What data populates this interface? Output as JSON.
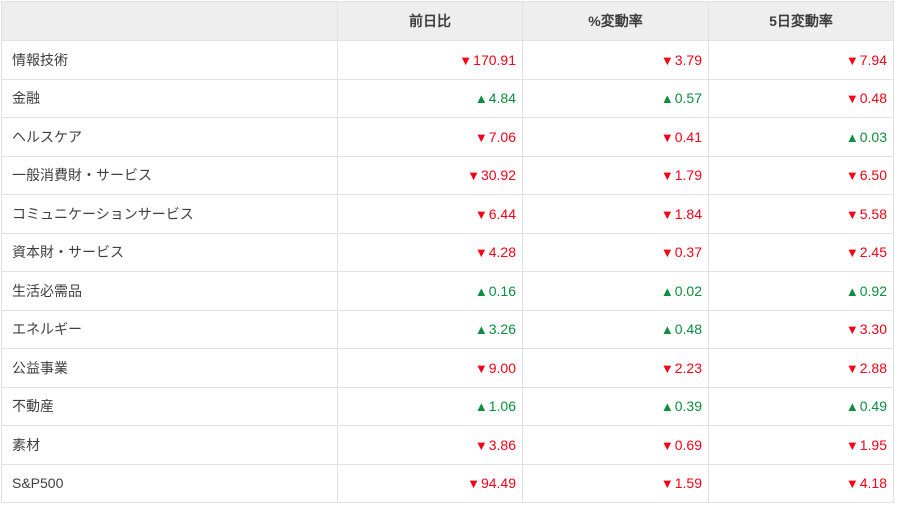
{
  "colors": {
    "up": "#0a8f3c",
    "down": "#fa0016",
    "header_bg": "#eeeeef",
    "border": "#e2e2e3",
    "text": "#3f3f3f"
  },
  "icons": {
    "up": "▲",
    "down": "▼"
  },
  "table": {
    "columns": [
      {
        "key": "name",
        "label": ""
      },
      {
        "key": "dod",
        "label": "前日比"
      },
      {
        "key": "pct",
        "label": "%変動率"
      },
      {
        "key": "pct5d",
        "label": "5日変動率"
      }
    ],
    "rows": [
      {
        "name": "情報技術",
        "cells": [
          {
            "dir": "down",
            "value": "170.91"
          },
          {
            "dir": "down",
            "value": "3.79"
          },
          {
            "dir": "down",
            "value": "7.94"
          }
        ]
      },
      {
        "name": "金融",
        "cells": [
          {
            "dir": "up",
            "value": "4.84"
          },
          {
            "dir": "up",
            "value": "0.57"
          },
          {
            "dir": "down",
            "value": "0.48"
          }
        ]
      },
      {
        "name": "ヘルスケア",
        "cells": [
          {
            "dir": "down",
            "value": "7.06"
          },
          {
            "dir": "down",
            "value": "0.41"
          },
          {
            "dir": "up",
            "value": "0.03"
          }
        ]
      },
      {
        "name": "一般消費財・サービス",
        "cells": [
          {
            "dir": "down",
            "value": "30.92"
          },
          {
            "dir": "down",
            "value": "1.79"
          },
          {
            "dir": "down",
            "value": "6.50"
          }
        ]
      },
      {
        "name": "コミュニケーションサービス",
        "cells": [
          {
            "dir": "down",
            "value": "6.44"
          },
          {
            "dir": "down",
            "value": "1.84"
          },
          {
            "dir": "down",
            "value": "5.58"
          }
        ]
      },
      {
        "name": "資本財・サービス",
        "cells": [
          {
            "dir": "down",
            "value": "4.28"
          },
          {
            "dir": "down",
            "value": "0.37"
          },
          {
            "dir": "down",
            "value": "2.45"
          }
        ]
      },
      {
        "name": "生活必需品",
        "cells": [
          {
            "dir": "up",
            "value": "0.16"
          },
          {
            "dir": "up",
            "value": "0.02"
          },
          {
            "dir": "up",
            "value": "0.92"
          }
        ]
      },
      {
        "name": "エネルギー",
        "cells": [
          {
            "dir": "up",
            "value": "3.26"
          },
          {
            "dir": "up",
            "value": "0.48"
          },
          {
            "dir": "down",
            "value": "3.30"
          }
        ]
      },
      {
        "name": "公益事業",
        "cells": [
          {
            "dir": "down",
            "value": "9.00"
          },
          {
            "dir": "down",
            "value": "2.23"
          },
          {
            "dir": "down",
            "value": "2.88"
          }
        ]
      },
      {
        "name": "不動産",
        "cells": [
          {
            "dir": "up",
            "value": "1.06"
          },
          {
            "dir": "up",
            "value": "0.39"
          },
          {
            "dir": "up",
            "value": "0.49"
          }
        ]
      },
      {
        "name": "素材",
        "cells": [
          {
            "dir": "down",
            "value": "3.86"
          },
          {
            "dir": "down",
            "value": "0.69"
          },
          {
            "dir": "down",
            "value": "1.95"
          }
        ]
      },
      {
        "name": "S&P500",
        "cells": [
          {
            "dir": "down",
            "value": "94.49"
          },
          {
            "dir": "down",
            "value": "1.59"
          },
          {
            "dir": "down",
            "value": "4.18"
          }
        ]
      }
    ]
  }
}
